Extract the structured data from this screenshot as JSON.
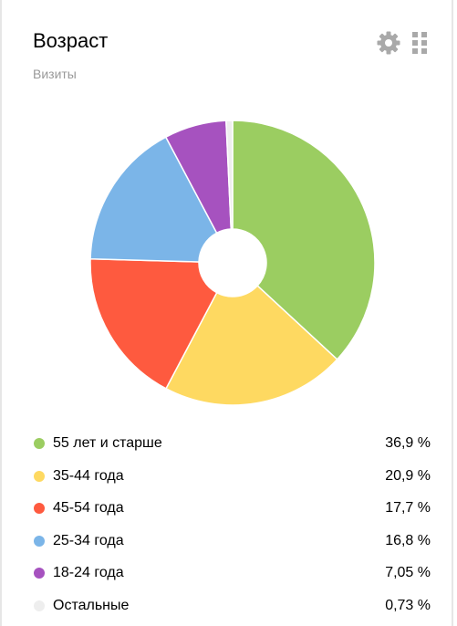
{
  "widget": {
    "title": "Возраст",
    "subtitle": "Визиты",
    "settings_icon": "gear-icon",
    "drag_icon": "drag-handle-icon"
  },
  "chart_data": {
    "type": "pie",
    "categories": [
      "55 лет и старше",
      "35-44 года",
      "45-54 года",
      "25-34 года",
      "18-24 года",
      "Остальные"
    ],
    "values": [
      36.9,
      20.9,
      17.7,
      16.8,
      7.05,
      0.73
    ],
    "labels": [
      "36,9 %",
      "20,9 %",
      "17,7 %",
      "16,8 %",
      "7,05 %",
      "0,73 %"
    ],
    "colors": [
      "#9bcd61",
      "#fed961",
      "#fe5a3f",
      "#7bb5e8",
      "#a652bf",
      "#eeeeee"
    ],
    "donut": true
  }
}
